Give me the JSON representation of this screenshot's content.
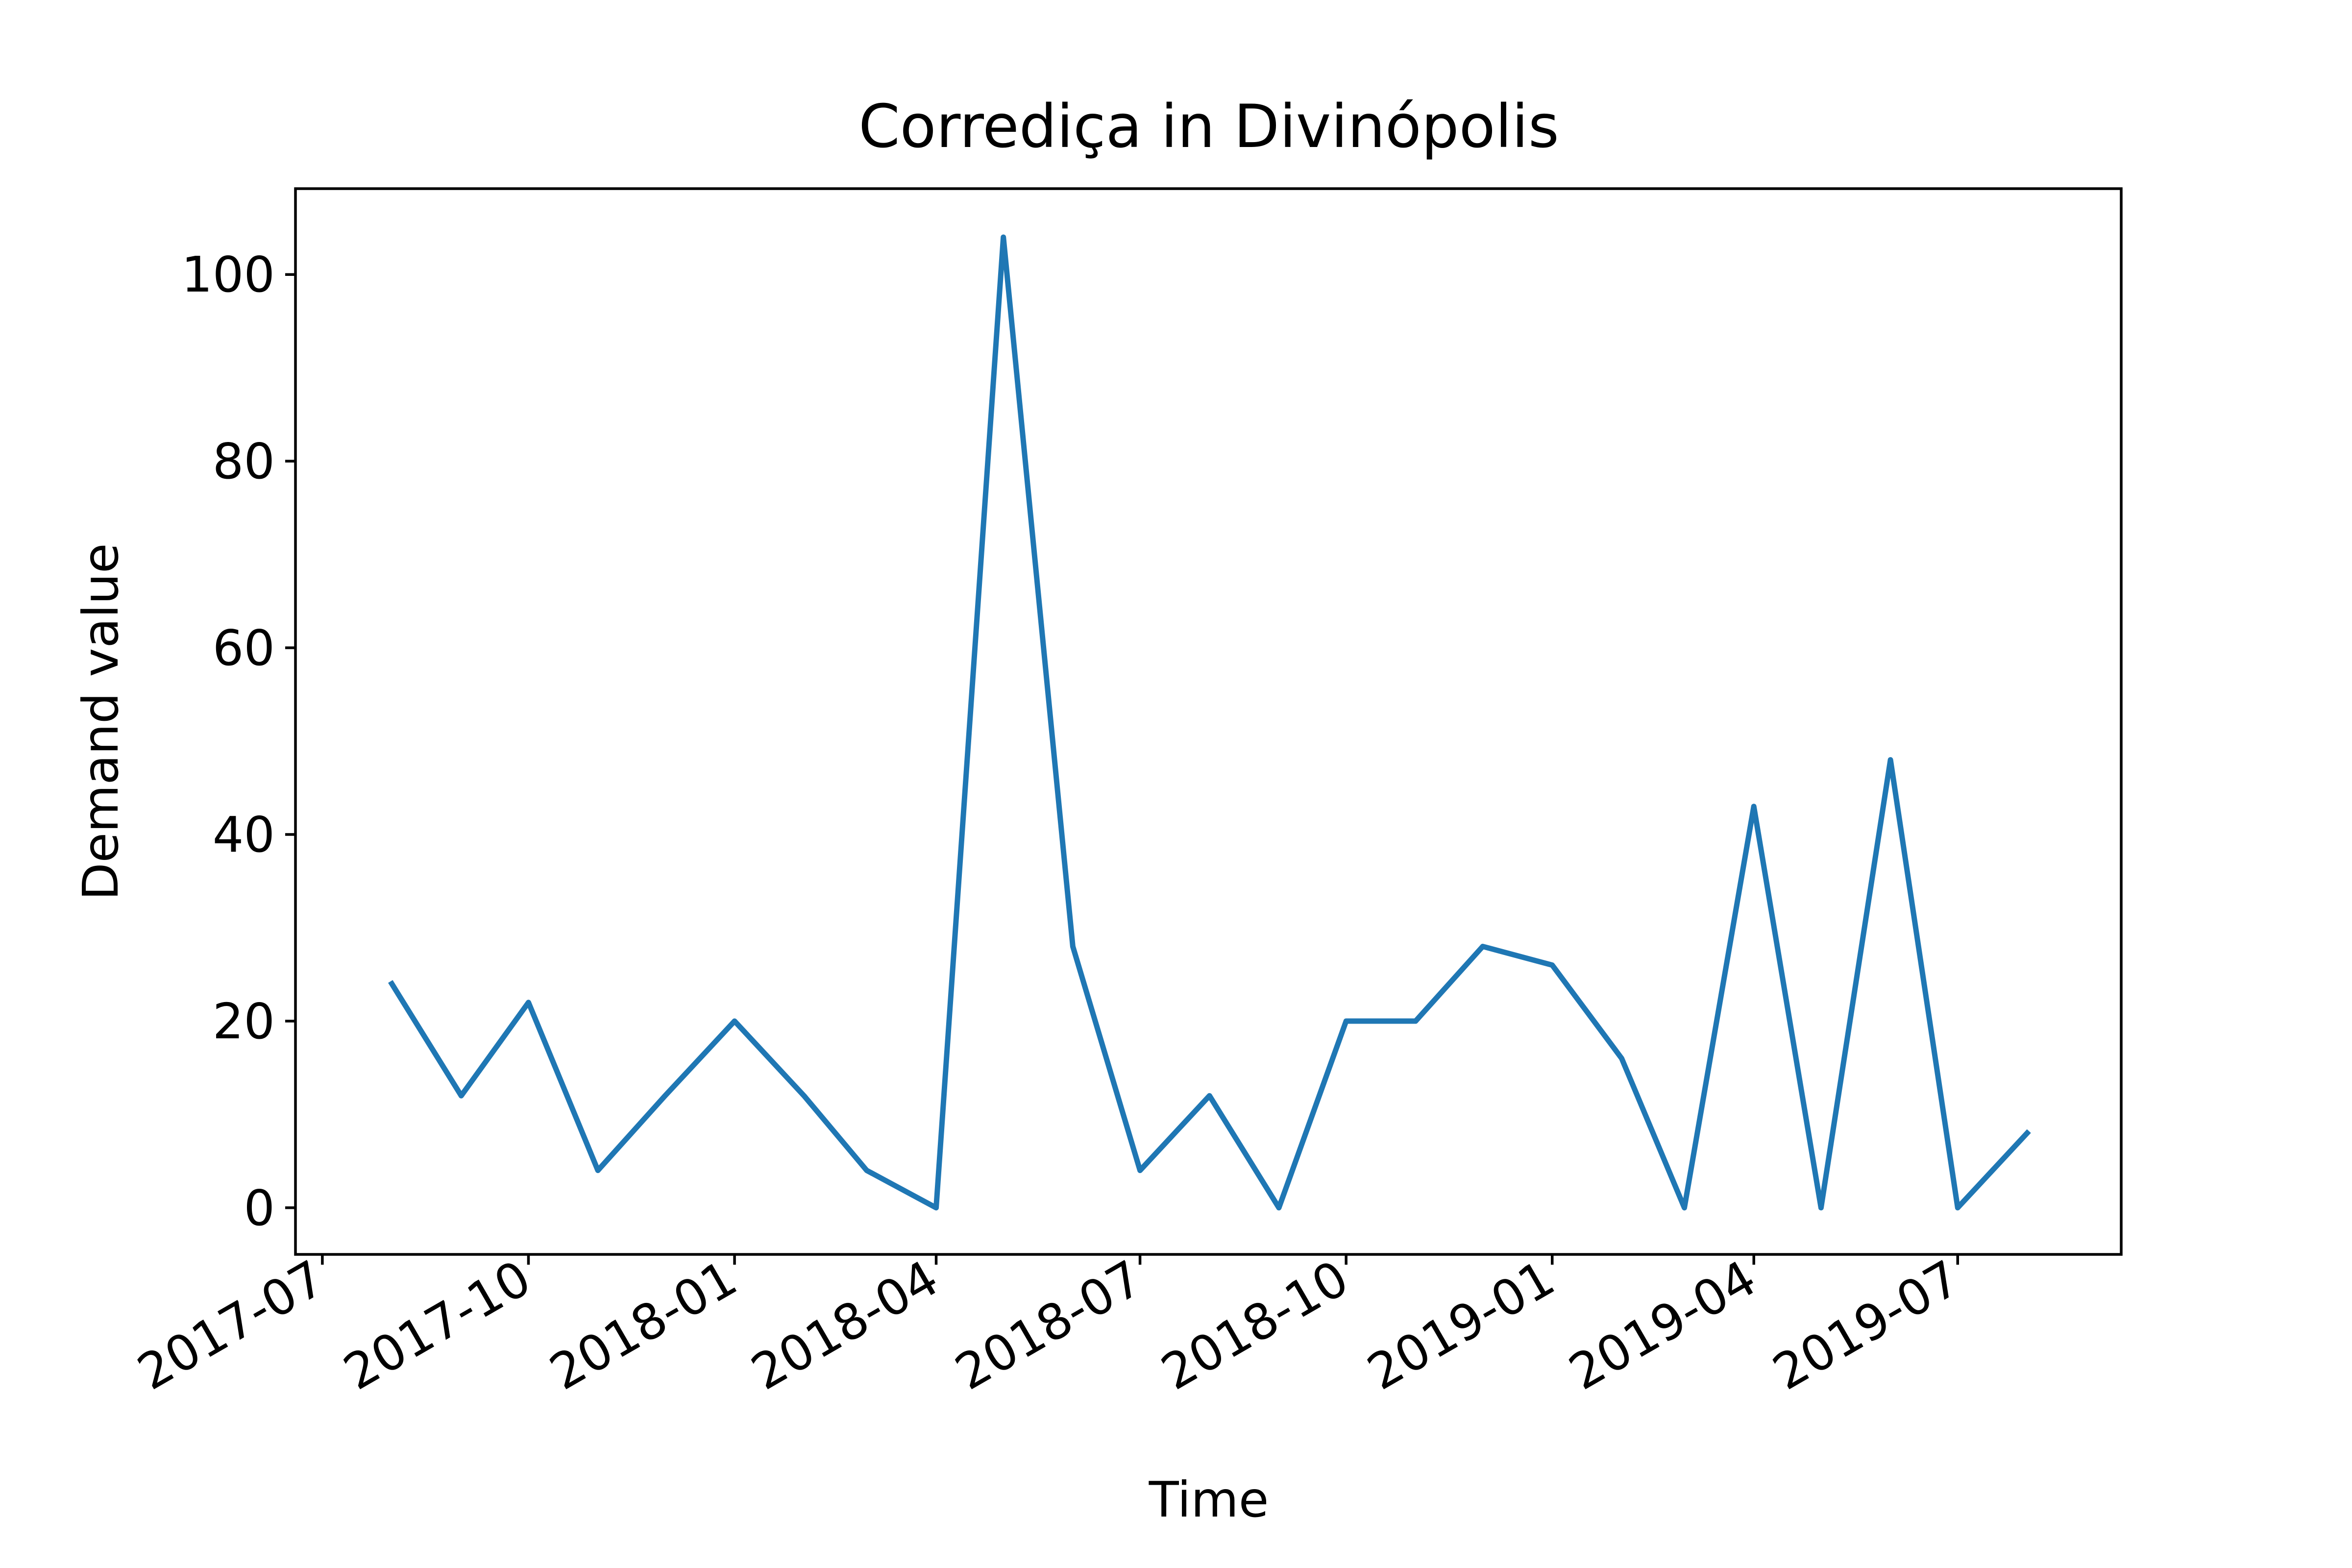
{
  "chart_data": {
    "type": "line",
    "title": "Corrediça in Divinópolis",
    "xlabel": "Time",
    "ylabel": "Demand value",
    "x_tick_labels": [
      "2017-07",
      "2017-10",
      "2018-01",
      "2018-04",
      "2018-07",
      "2018-10",
      "2019-01",
      "2019-04",
      "2019-07"
    ],
    "y_ticks": [
      0,
      20,
      40,
      60,
      80,
      100
    ],
    "ylim": [
      -5,
      109.2
    ],
    "xlim": [
      "2017-06-19",
      "2019-09-12"
    ],
    "grid": false,
    "series": [
      {
        "color": "#1f77b4",
        "x": [
          "2017-08-01",
          "2017-09-01",
          "2017-10-01",
          "2017-11-01",
          "2017-12-01",
          "2018-01-01",
          "2018-02-01",
          "2018-03-01",
          "2018-04-01",
          "2018-05-01",
          "2018-06-01",
          "2018-07-01",
          "2018-08-01",
          "2018-09-01",
          "2018-10-01",
          "2018-11-01",
          "2018-12-01",
          "2019-01-01",
          "2019-02-01",
          "2019-03-01",
          "2019-04-01",
          "2019-05-01",
          "2019-06-01",
          "2019-07-01",
          "2019-08-01"
        ],
        "values": [
          24,
          12,
          22,
          4,
          12,
          20,
          12,
          4,
          0,
          104,
          28,
          4,
          12,
          0,
          20,
          20,
          28,
          26,
          16,
          0,
          43,
          0,
          48,
          0,
          8
        ]
      }
    ]
  }
}
